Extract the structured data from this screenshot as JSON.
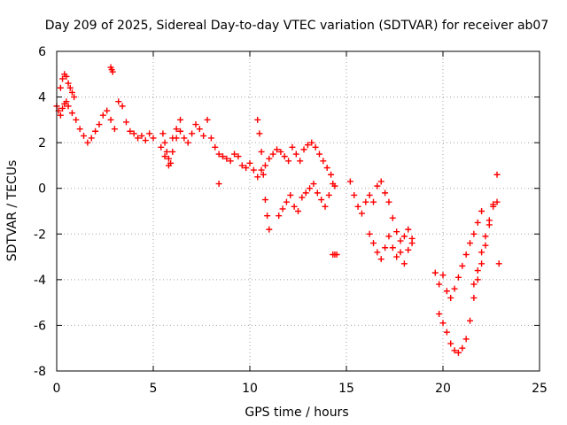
{
  "chart_data": {
    "type": "scatter",
    "title": "Day 209 of 2025, Sidereal Day-to-day VTEC variation (SDTVAR) for receiver ab07",
    "xlabel": "GPS time / hours",
    "ylabel": "SDTVAR / TECUs",
    "xlim": [
      0,
      25
    ],
    "ylim": [
      -8,
      6
    ],
    "xticks": [
      0,
      5,
      10,
      15,
      20,
      25
    ],
    "xtick_labels": [
      "0",
      "5",
      "10",
      "15",
      "20",
      "25"
    ],
    "yticks": [
      -8,
      -6,
      -4,
      -2,
      0,
      2,
      4,
      6
    ],
    "ytick_labels": [
      "-8",
      "-6",
      "-4",
      "-2",
      "0",
      "2",
      "4",
      "6"
    ],
    "grid": true,
    "marker": "plus",
    "color": "#ff0000",
    "series": [
      {
        "name": "sdtvar",
        "x": [
          0.0,
          0.1,
          0.2,
          0.3,
          0.4,
          0.5,
          0.6,
          0.8,
          1.0,
          1.2,
          1.4,
          1.6,
          1.8,
          2.0,
          2.2,
          2.4,
          2.6,
          2.8,
          3.0,
          3.2,
          3.4,
          3.6,
          3.8,
          4.0,
          4.2,
          4.4,
          4.6,
          4.8,
          5.0,
          0.2,
          0.3,
          0.4,
          0.5,
          0.6,
          0.7,
          0.8,
          0.9,
          2.8,
          2.85,
          2.9,
          5.5,
          5.6,
          5.7,
          5.8,
          5.9,
          6.0,
          6.2,
          6.4,
          6.6,
          6.8,
          7.0,
          7.2,
          7.4,
          7.6,
          7.8,
          8.0,
          8.2,
          8.4,
          8.6,
          8.8,
          9.0,
          9.2,
          9.4,
          9.6,
          9.8,
          10.0,
          5.4,
          5.6,
          5.8,
          6.0,
          6.2,
          6.4,
          8.4,
          10.4,
          10.5,
          10.6,
          10.7,
          10.8,
          10.9,
          11.0,
          10.2,
          10.4,
          10.6,
          10.8,
          11.0,
          11.2,
          11.4,
          11.6,
          11.8,
          12.0,
          12.2,
          12.4,
          12.6,
          12.8,
          13.0,
          13.2,
          13.4,
          13.6,
          13.8,
          14.0,
          14.2,
          14.4,
          11.5,
          11.7,
          11.9,
          12.1,
          12.3,
          12.5,
          12.7,
          12.9,
          13.1,
          13.3,
          13.5,
          13.7,
          13.9,
          14.1,
          14.3,
          14.3,
          14.4,
          14.5,
          15.2,
          15.4,
          15.6,
          15.8,
          16.0,
          16.2,
          16.4,
          16.6,
          16.8,
          17.0,
          17.2,
          17.4,
          17.6,
          17.8,
          18.0,
          18.2,
          18.4,
          16.2,
          16.4,
          16.6,
          16.8,
          17.0,
          17.2,
          17.4,
          17.6,
          17.8,
          18.0,
          18.2,
          18.4,
          19.6,
          19.8,
          20.0,
          20.2,
          20.4,
          20.6,
          20.8,
          21.0,
          21.2,
          21.4,
          21.6,
          21.8,
          22.0,
          19.8,
          20.0,
          20.2,
          20.4,
          20.6,
          20.8,
          21.0,
          21.2,
          21.4,
          21.6,
          21.8,
          22.0,
          22.2,
          22.4,
          22.6,
          22.8,
          21.6,
          21.8,
          22.0,
          22.2,
          22.4,
          22.6,
          22.8,
          22.9
        ],
        "y": [
          3.6,
          3.4,
          3.2,
          3.5,
          3.7,
          3.8,
          3.6,
          3.3,
          3.0,
          2.6,
          2.3,
          2.0,
          2.2,
          2.5,
          2.8,
          3.2,
          3.4,
          3.0,
          2.6,
          3.8,
          3.6,
          2.9,
          2.5,
          2.4,
          2.2,
          2.3,
          2.1,
          2.4,
          2.2,
          4.4,
          4.8,
          5.0,
          4.9,
          4.6,
          4.4,
          4.2,
          4.0,
          5.3,
          5.2,
          5.1,
          2.4,
          2.0,
          1.6,
          1.3,
          1.1,
          2.2,
          2.6,
          2.5,
          2.2,
          2.0,
          2.4,
          2.8,
          2.6,
          2.3,
          3.0,
          2.2,
          1.8,
          1.5,
          1.4,
          1.3,
          1.2,
          1.5,
          1.4,
          1.0,
          0.9,
          1.1,
          1.8,
          1.4,
          1.0,
          1.6,
          2.2,
          3.0,
          0.2,
          3.0,
          2.4,
          1.6,
          0.6,
          -0.5,
          -1.2,
          -1.8,
          0.8,
          0.5,
          0.8,
          1.0,
          1.3,
          1.5,
          1.7,
          1.6,
          1.4,
          1.2,
          1.8,
          1.5,
          1.2,
          1.7,
          1.9,
          2.0,
          1.8,
          1.5,
          1.2,
          0.9,
          0.6,
          0.1,
          -1.2,
          -0.9,
          -0.6,
          -0.3,
          -0.8,
          -1.0,
          -0.4,
          -0.2,
          0.0,
          0.2,
          -0.2,
          -0.5,
          -0.8,
          -0.3,
          0.2,
          -2.9,
          -2.9,
          -2.9,
          0.3,
          -0.3,
          -0.8,
          -1.1,
          -0.6,
          -0.3,
          -0.6,
          0.1,
          0.3,
          -0.2,
          -0.6,
          -1.3,
          -1.9,
          -2.3,
          -2.1,
          -1.8,
          -2.2,
          -2.0,
          -2.4,
          -2.8,
          -3.1,
          -2.6,
          -2.1,
          -2.6,
          -3.0,
          -2.8,
          -3.3,
          -2.7,
          -2.4,
          -3.7,
          -4.2,
          -3.8,
          -4.5,
          -4.8,
          -4.4,
          -3.9,
          -3.4,
          -2.9,
          -2.4,
          -2.0,
          -1.5,
          -1.0,
          -5.5,
          -5.9,
          -6.3,
          -6.8,
          -7.1,
          -7.2,
          -7.0,
          -6.6,
          -5.8,
          -4.8,
          -4.0,
          -3.3,
          -2.5,
          -1.6,
          -0.7,
          0.6,
          -4.2,
          -3.6,
          -2.8,
          -2.1,
          -1.4,
          -0.8,
          -0.6,
          -3.3
        ]
      }
    ]
  }
}
